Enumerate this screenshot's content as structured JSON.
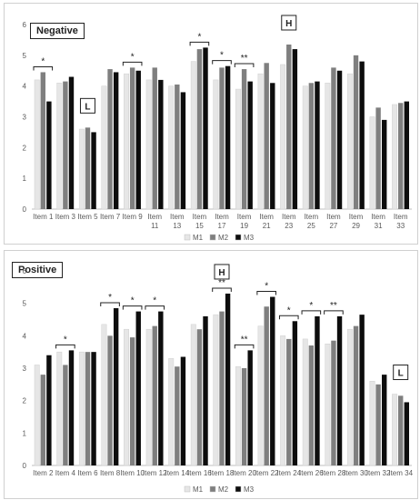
{
  "chart_data": [
    {
      "type": "bar",
      "title": "Negative",
      "ylim": [
        0,
        6
      ],
      "yticks": [
        0,
        1,
        2,
        3,
        4,
        5,
        6
      ],
      "grid": false,
      "legend": "bottom",
      "categories": [
        "Item 1",
        "Item 3",
        "Item 5",
        "Item 7",
        "Item 9",
        "Item 11",
        "Item 13",
        "Item 15",
        "Item 17",
        "Item 19",
        "Item 21",
        "Item 23",
        "Item 25",
        "Item 27",
        "Item 29",
        "Item 31",
        "Item 33"
      ],
      "category_lines": [
        [
          "Item 1"
        ],
        [
          "Item 3"
        ],
        [
          "Item 5"
        ],
        [
          "Item 7"
        ],
        [
          "Item 9"
        ],
        [
          "Item",
          "11"
        ],
        [
          "Item",
          "13"
        ],
        [
          "Item",
          "15"
        ],
        [
          "Item",
          "17"
        ],
        [
          "Item",
          "19"
        ],
        [
          "Item",
          "21"
        ],
        [
          "Item",
          "23"
        ],
        [
          "Item",
          "25"
        ],
        [
          "Item",
          "27"
        ],
        [
          "Item",
          "29"
        ],
        [
          "Item",
          "31"
        ],
        [
          "Item",
          "33"
        ]
      ],
      "series": [
        {
          "name": "M1",
          "color": "#e6e6e6",
          "values": [
            4.2,
            4.1,
            2.6,
            4.0,
            4.4,
            4.2,
            4.0,
            4.8,
            4.2,
            3.9,
            4.4,
            4.7,
            4.0,
            4.1,
            4.4,
            3.0,
            3.4
          ]
        },
        {
          "name": "M2",
          "color": "#7f7f7f",
          "values": [
            4.45,
            4.15,
            2.65,
            4.55,
            4.6,
            4.6,
            4.05,
            5.2,
            4.6,
            4.55,
            4.75,
            5.35,
            4.1,
            4.6,
            5.0,
            3.3,
            3.45
          ]
        },
        {
          "name": "M3",
          "color": "#0d0d0d",
          "values": [
            3.5,
            4.3,
            2.5,
            4.45,
            4.5,
            4.2,
            3.8,
            5.25,
            4.65,
            4.15,
            4.1,
            5.2,
            4.15,
            4.5,
            4.8,
            2.9,
            3.5
          ]
        }
      ],
      "significance": [
        {
          "from": "Item 1",
          "to": "Item 1",
          "mark": "*"
        },
        {
          "from": "Item 9",
          "to": "Item 9",
          "mark": "*"
        },
        {
          "from": "Item 15",
          "to": "Item 15",
          "mark": "*"
        },
        {
          "from": "Item 17",
          "to": "Item 17",
          "mark": "*"
        },
        {
          "from": "Item 19",
          "to": "Item 19",
          "mark": "**"
        }
      ],
      "annotations": [
        {
          "text": "L",
          "at": "Item 5"
        },
        {
          "text": "H",
          "at": "Item 23"
        }
      ]
    },
    {
      "type": "bar",
      "title": "Positive",
      "ylim": [
        0,
        6
      ],
      "yticks": [
        0,
        1,
        2,
        3,
        4,
        5,
        6
      ],
      "grid": false,
      "legend": "bottom",
      "categories": [
        "Item 2",
        "Item 4",
        "Item 6",
        "Item 8",
        "Item 10",
        "Item 12",
        "Item 14",
        "Item 16",
        "Item 18",
        "Item 20",
        "Item 22",
        "Item 24",
        "Item 26",
        "Item 28",
        "Item 30",
        "Item 32",
        "Item 34"
      ],
      "category_lines": [
        [
          "Item 2"
        ],
        [
          "Item 4"
        ],
        [
          "Item 6"
        ],
        [
          "Item 8"
        ],
        [
          "Item 10"
        ],
        [
          "Item 12"
        ],
        [
          "Item 14"
        ],
        [
          "Item 16"
        ],
        [
          "Item 18"
        ],
        [
          "Item 20"
        ],
        [
          "Item 22"
        ],
        [
          "Item 24"
        ],
        [
          "Item 26"
        ],
        [
          "Item 28"
        ],
        [
          "Item 30"
        ],
        [
          "Item 32"
        ],
        [
          "Item 34"
        ]
      ],
      "series": [
        {
          "name": "M1",
          "color": "#e6e6e6",
          "values": [
            3.1,
            3.5,
            3.5,
            4.35,
            4.2,
            4.2,
            3.3,
            4.35,
            4.65,
            3.05,
            4.3,
            4.0,
            3.9,
            3.75,
            4.2,
            2.6,
            2.2
          ]
        },
        {
          "name": "M2",
          "color": "#7f7f7f",
          "values": [
            2.8,
            3.1,
            3.5,
            4.0,
            3.95,
            4.3,
            3.05,
            4.2,
            4.75,
            3.0,
            4.9,
            3.9,
            3.7,
            3.85,
            4.3,
            2.5,
            2.15
          ]
        },
        {
          "name": "M3",
          "color": "#0d0d0d",
          "values": [
            3.4,
            3.55,
            3.5,
            4.85,
            4.75,
            4.75,
            3.35,
            4.6,
            5.3,
            3.55,
            5.2,
            4.45,
            4.6,
            4.6,
            4.65,
            2.8,
            1.95
          ]
        }
      ],
      "significance": [
        {
          "from": "Item 4",
          "to": "Item 4",
          "mark": "*"
        },
        {
          "from": "Item 8",
          "to": "Item 8",
          "mark": "*"
        },
        {
          "from": "Item 10",
          "to": "Item 10",
          "mark": "*"
        },
        {
          "from": "Item 12",
          "to": "Item 12",
          "mark": "*"
        },
        {
          "from": "Item 18",
          "to": "Item 18",
          "mark": "**"
        },
        {
          "from": "Item 20",
          "to": "Item 20",
          "mark": "**"
        },
        {
          "from": "Item 22",
          "to": "Item 22",
          "mark": "*"
        },
        {
          "from": "Item 24",
          "to": "Item 24",
          "mark": "*"
        },
        {
          "from": "Item 26",
          "to": "Item 26",
          "mark": "*"
        },
        {
          "from": "Item 28",
          "to": "Item 28",
          "mark": "**"
        }
      ],
      "annotations": [
        {
          "text": "H",
          "at": "Item 18"
        },
        {
          "text": "L",
          "at": "Item 34"
        }
      ]
    }
  ]
}
